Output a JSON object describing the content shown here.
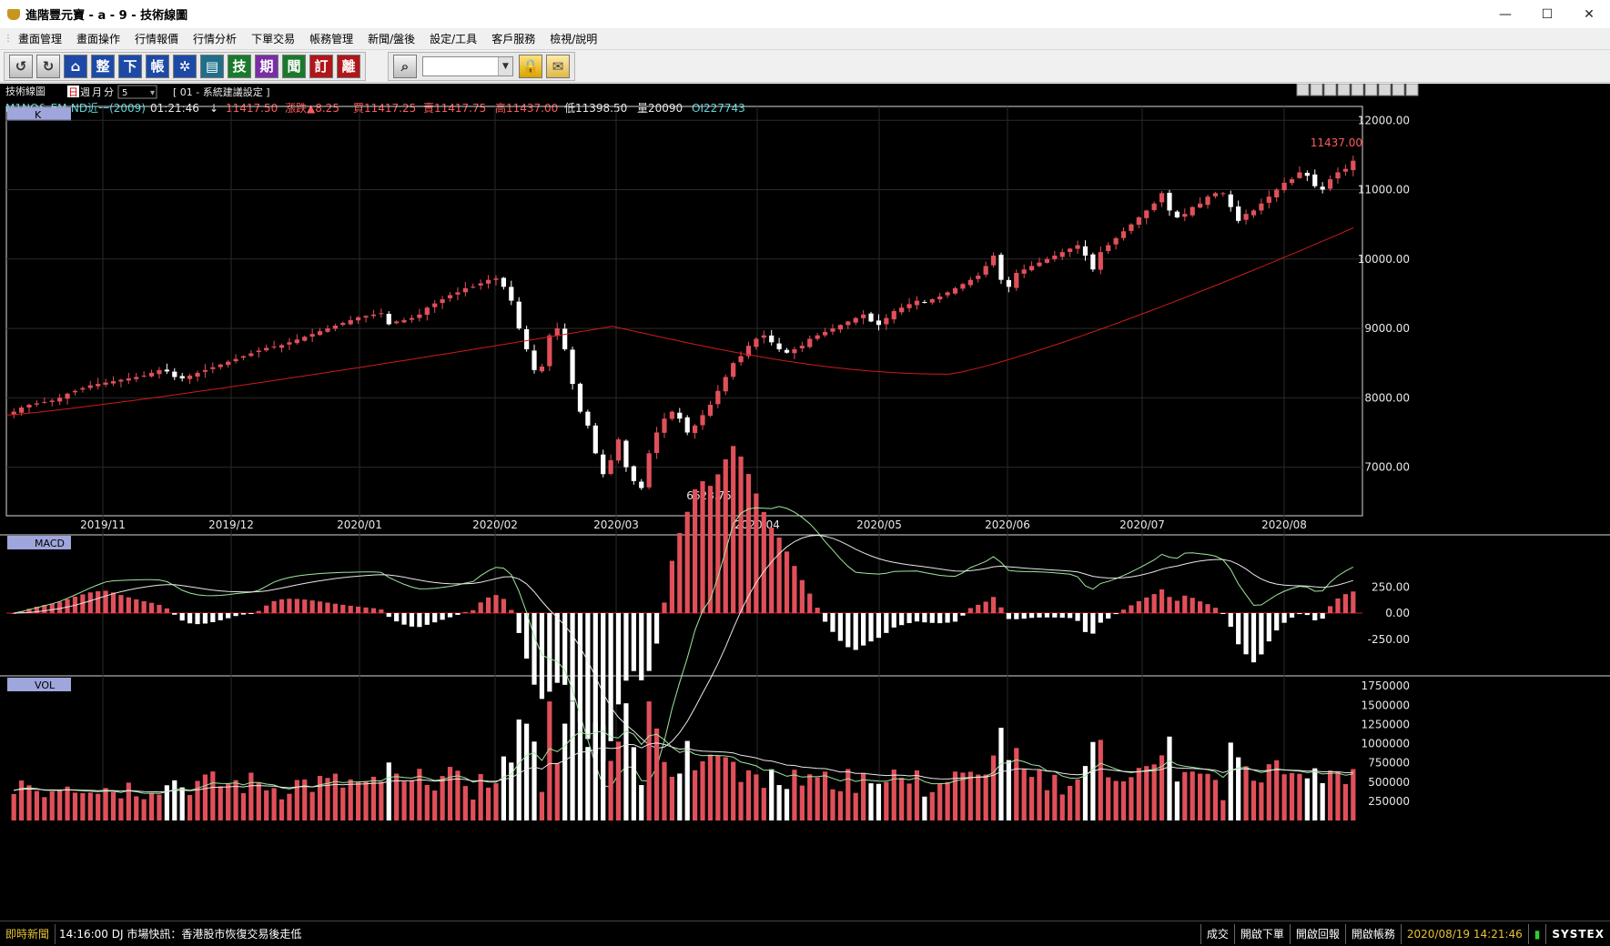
{
  "window": {
    "title": "進階豐元寶 - a - 9 - 技術線圖"
  },
  "menu": {
    "items": [
      "畫面管理",
      "畫面操作",
      "行情報價",
      "行情分析",
      "下單交易",
      "帳務管理",
      "新聞/盤後",
      "設定/工具",
      "客戶服務",
      "檢視/說明"
    ]
  },
  "toolbar": {
    "buttons": [
      {
        "glyph": "↺",
        "style": "gray",
        "icon": "refresh-icon"
      },
      {
        "glyph": "↻",
        "style": "gray",
        "icon": "redo-icon"
      },
      {
        "glyph": "⌂",
        "style": "blue",
        "icon": "home-icon"
      },
      {
        "glyph": "整",
        "style": "blue",
        "icon": "arrange-icon"
      },
      {
        "glyph": "下",
        "style": "blue",
        "icon": "order-icon"
      },
      {
        "glyph": "帳",
        "style": "blue",
        "icon": "account-icon"
      },
      {
        "glyph": "✲",
        "style": "blue",
        "icon": "gear-icon"
      },
      {
        "glyph": "▤",
        "style": "teal",
        "icon": "chart-icon"
      },
      {
        "glyph": "技",
        "style": "green",
        "icon": "technical-icon"
      },
      {
        "glyph": "期",
        "style": "purple",
        "icon": "futures-icon"
      },
      {
        "glyph": "聞",
        "style": "green",
        "icon": "news-icon"
      },
      {
        "glyph": "訂",
        "style": "red",
        "icon": "subscribe-icon"
      },
      {
        "glyph": "離",
        "style": "red",
        "icon": "exit-icon"
      }
    ],
    "search_icon": "magnifier-icon",
    "lock_icon": "lock-icon",
    "mail_icon": "mail-icon"
  },
  "chart_header": {
    "panel_title": "技術線圖",
    "period_day": "日",
    "period_week": "週",
    "period_month": "月",
    "period_minute": "分",
    "minute_value": "5",
    "settings_label": "[ 01 - 系統建議設定 ]",
    "symbol": "M1NQ& EM-ND近一(2009)",
    "time": "01:21:46",
    "direction": "↓",
    "last": "11417.50",
    "change": "漲跌▲8.25",
    "bid": "買11417.25",
    "ask": "賣11417.75",
    "high": "高11437.00",
    "low": "低11398.50",
    "volume": "量20090",
    "oi": "OI227743"
  },
  "panels": {
    "k_label": "K",
    "macd_label": "MACD",
    "vol_label": "VOL"
  },
  "k_axis": [
    "12000.00",
    "11000.00",
    "10000.00",
    "9000.00",
    "8000.00",
    "7000.00"
  ],
  "macd_axis": [
    "250.00",
    "0.00",
    "-250.00"
  ],
  "vol_axis": [
    "1750000",
    "1500000",
    "1250000",
    "1000000",
    "750000",
    "500000",
    "250000"
  ],
  "date_axis": [
    "2019/11",
    "2019/12",
    "2020/01",
    "2020/02",
    "2020/03",
    "2020/04",
    "2020/05",
    "2020/06",
    "2020/07",
    "2020/08"
  ],
  "annotations": {
    "high_label": "11437.00",
    "low_label": "6628.75"
  },
  "colors": {
    "up": "#e0505a",
    "down": "#ffffff",
    "ma": "#cc1c1c",
    "macd_dif": "#9ee89e",
    "macd_sig": "#e8e8e8",
    "vol_ma1": "#9ee89e",
    "vol_ma2": "#e8e8e8"
  },
  "chart_data": {
    "type": "candlestick",
    "ylim": [
      6300,
      12200
    ],
    "price_series": [
      7800,
      7860,
      7900,
      7920,
      7940,
      7960,
      8000,
      8060,
      8100,
      8140,
      8180,
      8200,
      8220,
      8240,
      8260,
      8280,
      8300,
      8320,
      8360,
      8400,
      8380,
      8300,
      8280,
      8320,
      8360,
      8400,
      8440,
      8480,
      8520,
      8560,
      8600,
      8640,
      8680,
      8720,
      8740,
      8760,
      8800,
      8840,
      8880,
      8920,
      8960,
      9000,
      9040,
      9080,
      9120,
      9160,
      9180,
      9200,
      9220,
      9060,
      9100,
      9120,
      9150,
      9200,
      9300,
      9360,
      9420,
      9480,
      9520,
      9580,
      9600,
      9650,
      9700,
      9720,
      9600,
      9400,
      9000,
      8700,
      8400,
      8450,
      8900,
      9000,
      8700,
      8200,
      7800,
      7600,
      7200,
      6900,
      7100,
      7400,
      7000,
      6800,
      6700,
      7200,
      7500,
      7700,
      7800,
      7700,
      7500,
      7600,
      7750,
      7900,
      8100,
      8300,
      8500,
      8600,
      8750,
      8850,
      8900,
      8800,
      8700,
      8650,
      8700,
      8750,
      8850,
      8900,
      8950,
      9000,
      9050,
      9100,
      9150,
      9200,
      9100,
      9050,
      9150,
      9250,
      9300,
      9350,
      9400,
      9380,
      9420,
      9460,
      9520,
      9580,
      9640,
      9700,
      9760,
      9900,
      10050,
      9700,
      9600,
      9800,
      9850,
      9900,
      9950,
      10000,
      10050,
      10100,
      10150,
      10200,
      10050,
      9850,
      10100,
      10200,
      10300,
      10400,
      10500,
      10600,
      10700,
      10800,
      10950,
      10700,
      10600,
      10650,
      10750,
      10800,
      10900,
      10950,
      10950,
      10750,
      10550,
      10650,
      10700,
      10800,
      10900,
      11000,
      11100,
      11150,
      11250,
      11200,
      11050,
      11000,
      11150,
      11250,
      11300,
      11417.5
    ],
    "ma": {
      "start": 7750,
      "end": 10450,
      "mid_peak": 9030,
      "mid_trough": 8340
    },
    "volume": {
      "peak": 1550000,
      "typical": 500000
    }
  }
}
